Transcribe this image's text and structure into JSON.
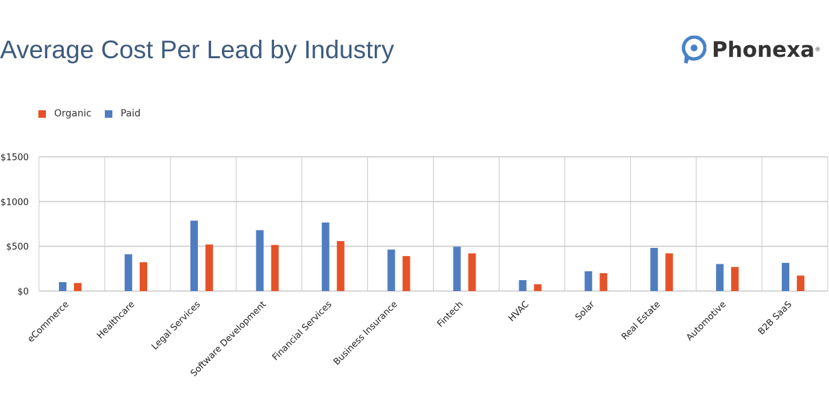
{
  "logo": {
    "text": "Phonexa",
    "reg": "®",
    "color": "#4a82c8"
  },
  "chart_data": {
    "type": "bar",
    "title": "Average Cost Per Lead by Industry",
    "xlabel": "",
    "ylabel": "",
    "ylim": [
      0,
      1500
    ],
    "yticks": [
      0,
      500,
      1000,
      1500
    ],
    "ytick_labels": [
      "$0",
      "$500",
      "$1000",
      "$1500"
    ],
    "grid": true,
    "legend": "top-left",
    "categories": [
      "eCommerce",
      "Healthcare",
      "Legal Services",
      "Software Development",
      "Financial Services",
      "Business Insurance",
      "Fintech",
      "HVAC",
      "Solar",
      "Real Estate",
      "Automotive",
      "B2B SaaS"
    ],
    "series": [
      {
        "name": "Paid",
        "color": "#4f7dc0",
        "values": [
          100,
          411,
          787,
          680,
          766,
          464,
          495,
          122,
          221,
          482,
          302,
          315
        ]
      },
      {
        "name": "Organic",
        "color": "#e65228",
        "values": [
          90,
          322,
          520,
          515,
          558,
          391,
          421,
          76,
          200,
          421,
          269,
          173
        ]
      }
    ],
    "legend_order": [
      "Organic",
      "Paid"
    ]
  }
}
